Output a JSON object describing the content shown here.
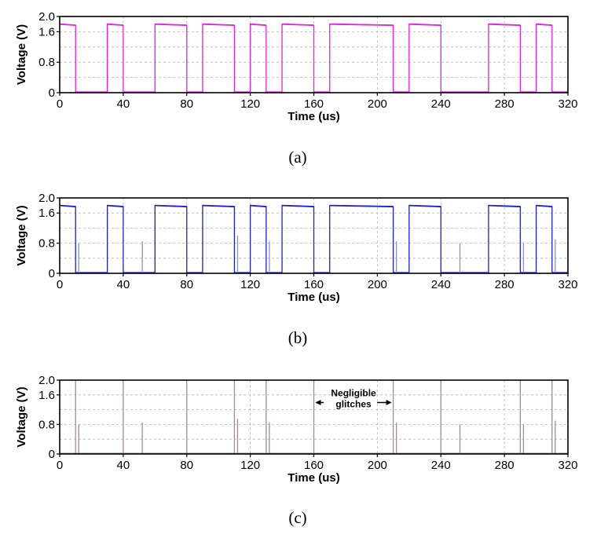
{
  "figure": {
    "captions": [
      "(a)",
      "(b)",
      "(c)"
    ]
  },
  "chart_data": [
    {
      "type": "line",
      "panel": "(a)",
      "xlabel": "Time (us)",
      "ylabel": "Voltage (V)",
      "xlim": [
        0,
        320
      ],
      "ylim": [
        0,
        2.0
      ],
      "xticks": [
        0,
        40,
        80,
        120,
        160,
        200,
        240,
        280,
        320
      ],
      "yticks": [
        0,
        0.8,
        1.6,
        2.0
      ],
      "grid": true,
      "color": "#e021e0",
      "high_level": 1.8,
      "high_intervals": [
        [
          0,
          10
        ],
        [
          30,
          40
        ],
        [
          60,
          80
        ],
        [
          90,
          110
        ],
        [
          120,
          130
        ],
        [
          140,
          160
        ],
        [
          170,
          210
        ],
        [
          220,
          240
        ],
        [
          270,
          290
        ],
        [
          300,
          310
        ]
      ],
      "spikes": []
    },
    {
      "type": "line",
      "panel": "(b)",
      "xlabel": "Time (us)",
      "ylabel": "Voltage (V)",
      "xlim": [
        0,
        320
      ],
      "ylim": [
        0,
        2.0
      ],
      "xticks": [
        0,
        40,
        80,
        120,
        160,
        200,
        240,
        280,
        320
      ],
      "yticks": [
        0,
        0.8,
        1.6,
        2.0
      ],
      "grid": true,
      "color": "#2020c8",
      "spike_color": "#8a92c8",
      "high_level": 1.8,
      "high_intervals": [
        [
          0,
          10
        ],
        [
          30,
          40
        ],
        [
          60,
          80
        ],
        [
          90,
          110
        ],
        [
          120,
          130
        ],
        [
          140,
          160
        ],
        [
          170,
          210
        ],
        [
          220,
          240
        ],
        [
          270,
          290
        ],
        [
          300,
          310
        ]
      ],
      "spikes": [
        [
          12,
          0.8
        ],
        [
          52,
          0.85
        ],
        [
          112,
          1.0
        ],
        [
          132,
          0.85
        ],
        [
          212,
          0.85
        ],
        [
          252,
          0.8
        ],
        [
          292,
          0.8
        ],
        [
          312,
          0.9
        ]
      ]
    },
    {
      "type": "line",
      "panel": "(c)",
      "xlabel": "Time (us)",
      "ylabel": "Voltage (V)",
      "xlim": [
        0,
        320
      ],
      "ylim": [
        0,
        2.0
      ],
      "xticks": [
        0,
        40,
        80,
        120,
        160,
        200,
        240,
        280,
        320
      ],
      "yticks": [
        0,
        0.8,
        1.6,
        2.0
      ],
      "grid": true,
      "color": "#9e8f8f",
      "spikes": [
        [
          10,
          2.0
        ],
        [
          12,
          0.8
        ],
        [
          40,
          2.0
        ],
        [
          52,
          0.85
        ],
        [
          80,
          2.0
        ],
        [
          110,
          2.0
        ],
        [
          112,
          0.95
        ],
        [
          130,
          2.0
        ],
        [
          132,
          0.85
        ],
        [
          160,
          2.0
        ],
        [
          210,
          2.0
        ],
        [
          212,
          0.85
        ],
        [
          240,
          2.0
        ],
        [
          252,
          0.8
        ],
        [
          290,
          2.0
        ],
        [
          292,
          0.8
        ],
        [
          310,
          2.0
        ],
        [
          312,
          0.9
        ]
      ],
      "annotation": {
        "text_lines": [
          "Negligible",
          "glitches"
        ],
        "x_from": 160,
        "x_to": 210,
        "y": 1.5
      }
    }
  ]
}
